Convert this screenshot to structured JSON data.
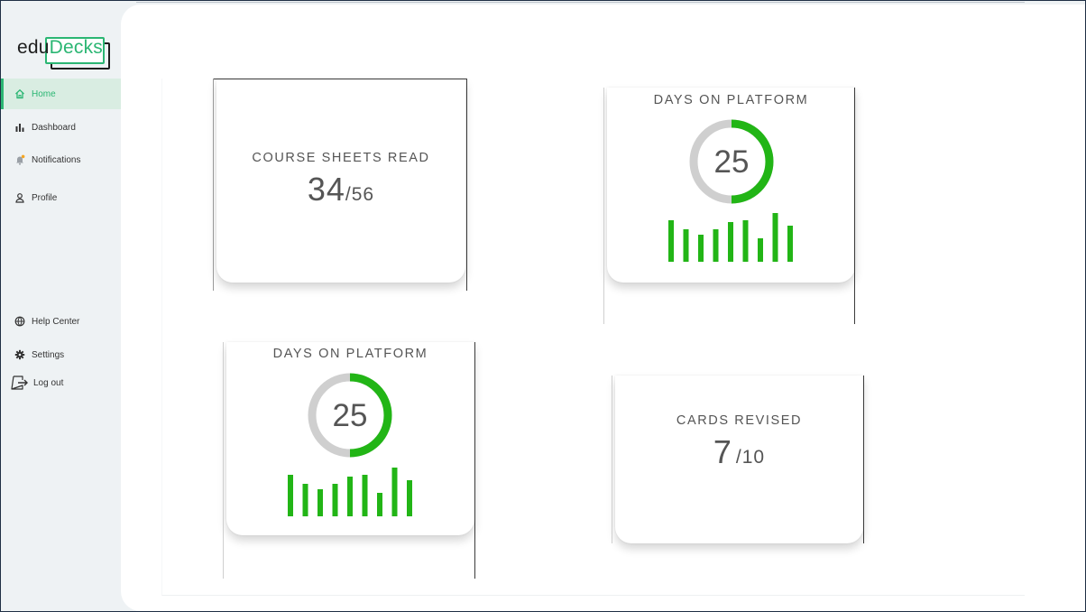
{
  "app": {
    "logo_part1": "edu",
    "logo_part2": "Decks"
  },
  "sidebar": {
    "items": [
      {
        "label": "Home",
        "icon": "home-icon",
        "active": true
      },
      {
        "label": "Dashboard",
        "icon": "bar-chart-icon",
        "active": false
      },
      {
        "label": "Notifications",
        "icon": "bell-icon",
        "active": false
      },
      {
        "label": "Profile",
        "icon": "user-icon",
        "active": false
      }
    ],
    "bottom_items": [
      {
        "label": "Help Center",
        "icon": "globe-icon"
      },
      {
        "label": "Settings",
        "icon": "gear-icon"
      },
      {
        "label": "Log out",
        "icon": "logout-icon"
      }
    ]
  },
  "cards": {
    "course_sheets": {
      "label": "COURSE SHEETS READ",
      "value": "34",
      "total": "/56"
    },
    "days_top": {
      "label": "DAYS ON PLATFORM",
      "value": "25",
      "progress": 0.5,
      "bars": [
        46,
        36,
        30,
        36,
        44,
        46,
        26,
        54,
        40
      ]
    },
    "days_bottom": {
      "label": "DAYS ON PLATFORM",
      "value": "25",
      "progress": 0.5,
      "bars": [
        46,
        36,
        30,
        36,
        44,
        46,
        26,
        54,
        40
      ]
    },
    "cards_revised": {
      "label": "CARDS REVISED",
      "value": "7",
      "total": "/10"
    }
  },
  "colors": {
    "accent": "#2bb673",
    "bar_green": "#22b516",
    "ring_gray": "#cfcfcf",
    "text": "#555555"
  }
}
